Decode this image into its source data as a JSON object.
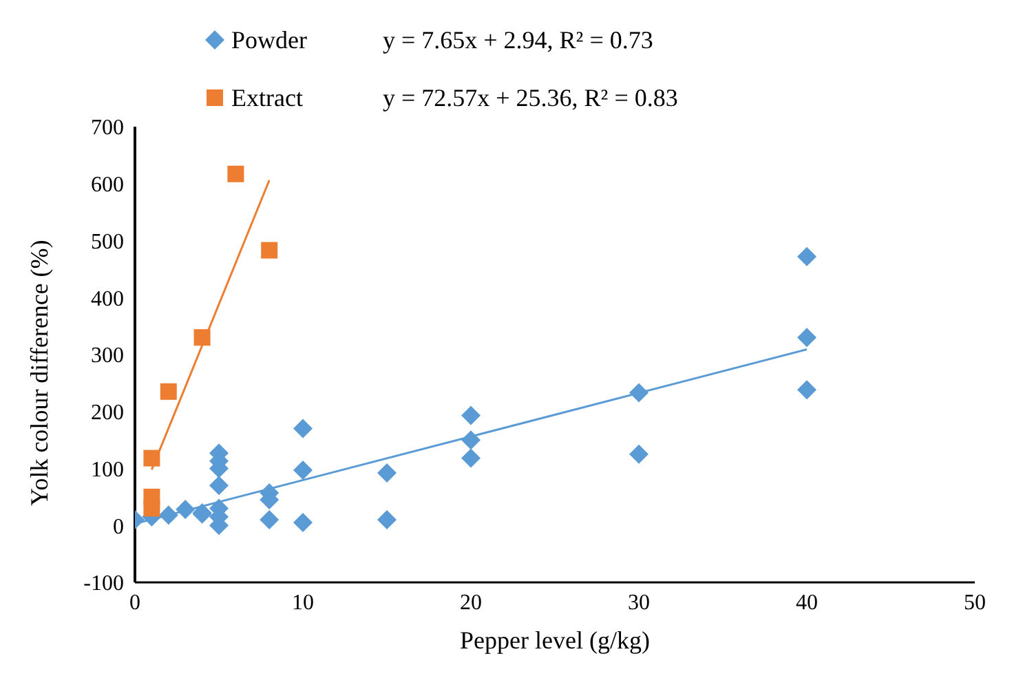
{
  "chart_data": {
    "type": "scatter",
    "xlabel": "Pepper level (g/kg)",
    "ylabel": "Yolk colour difference (%)",
    "xlim": [
      0,
      50
    ],
    "xticks": [
      0,
      10,
      20,
      30,
      40,
      50
    ],
    "ylim": [
      -100,
      700
    ],
    "yticks": [
      -100,
      0,
      100,
      200,
      300,
      400,
      500,
      600,
      700
    ],
    "grid": false,
    "legend": "top left",
    "annotations": [
      "y = 7.65x + 2.94, R² = 0.73",
      "y = 72.57x + 25.36, R² = 0.83"
    ],
    "series": [
      {
        "name": "Powder",
        "marker": "diamond",
        "color": "#5b9bd5",
        "x": [
          0,
          1,
          2,
          3,
          4,
          4,
          5,
          5,
          5,
          5,
          5,
          5,
          5,
          8,
          8,
          8,
          10,
          10,
          10,
          15,
          15,
          20,
          20,
          20,
          30,
          30,
          40,
          40,
          40
        ],
        "values": [
          10,
          15,
          18,
          28,
          22,
          20,
          0,
          15,
          30,
          70,
          100,
          113,
          127,
          57,
          45,
          10,
          170,
          97,
          5,
          92,
          10,
          193,
          150,
          118,
          233,
          125,
          472,
          330,
          238
        ]
      },
      {
        "name": "Extract",
        "marker": "square",
        "color": "#ed7d31",
        "x": [
          1,
          1,
          1,
          2,
          4,
          6,
          8
        ],
        "values": [
          118,
          50,
          30,
          235,
          330,
          617,
          483
        ]
      },
      {
        "type": "line",
        "marker": "none",
        "color": "#5b9bd5",
        "x": [
          0,
          40
        ],
        "values": [
          3,
          309
        ]
      },
      {
        "type": "line",
        "marker": "none",
        "color": "#ed7d31",
        "x": [
          1,
          8
        ],
        "values": [
          98,
          606
        ]
      }
    ]
  }
}
